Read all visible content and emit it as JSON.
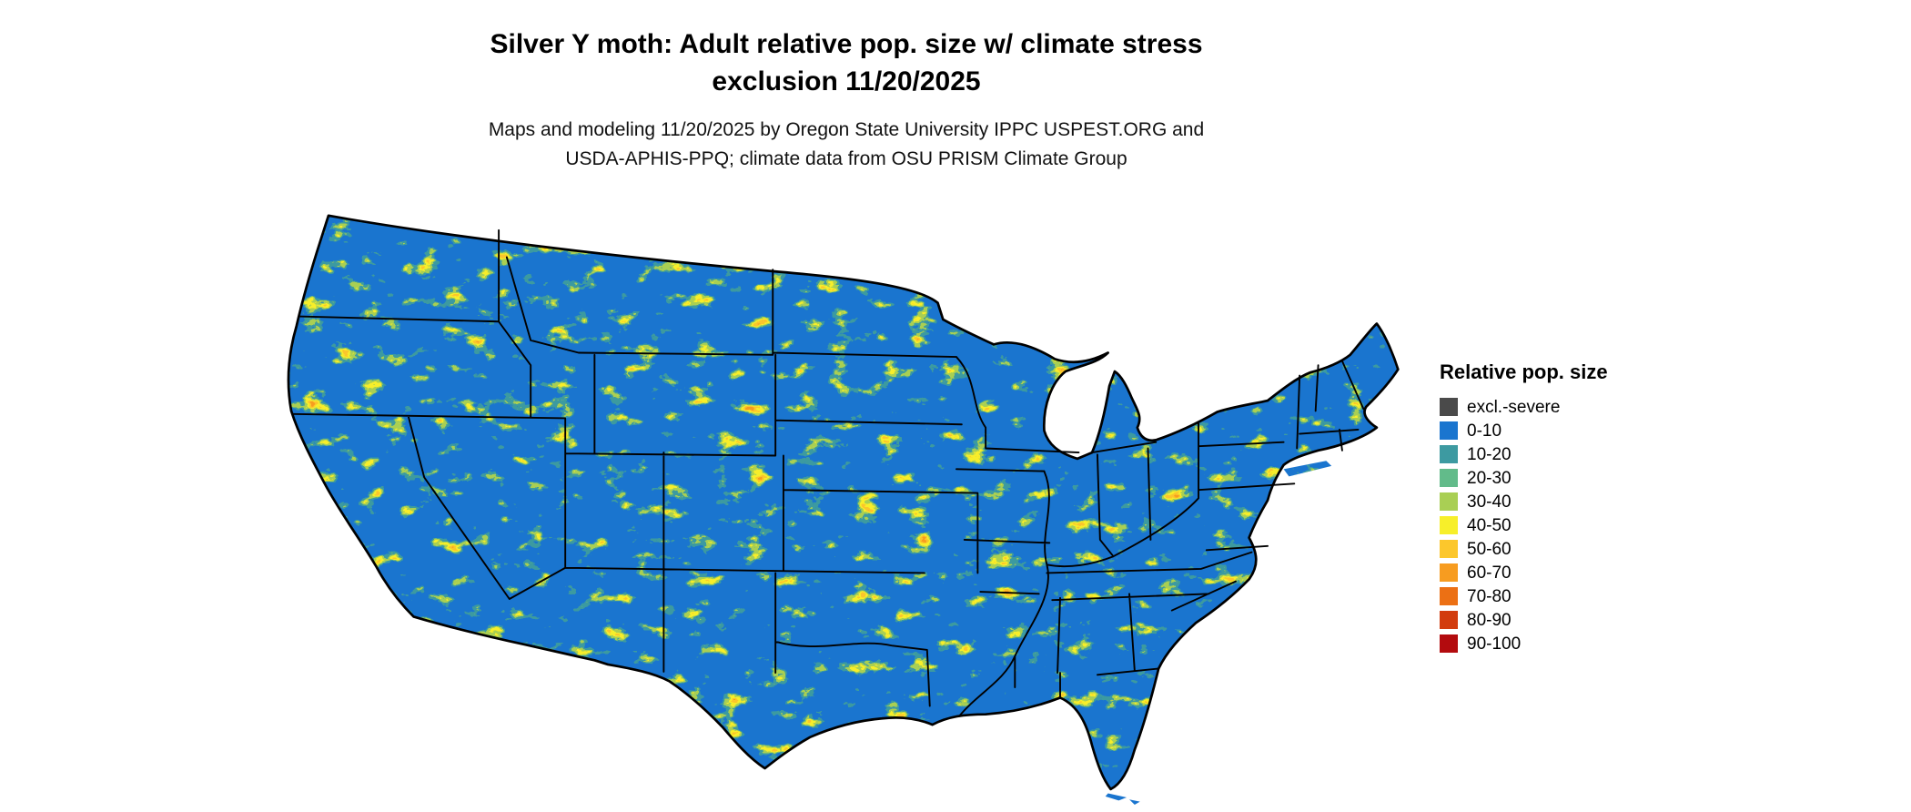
{
  "title": {
    "line1": "Silver Y moth: Adult relative pop. size w/ climate stress",
    "line2": "exclusion 11/20/2025"
  },
  "subtitle": {
    "line1": "Maps and modeling 11/20/2025 by Oregon State University IPPC USPEST.ORG and",
    "line2": "USDA-APHIS-PPQ; climate data from OSU PRISM Climate Group"
  },
  "map": {
    "region": "Conterminous United States",
    "base_color": "#1a75cf",
    "border_color": "#000000"
  },
  "legend": {
    "title": "Relative pop. size",
    "items": [
      {
        "label": "excl.-severe",
        "color": "#4a4a4a"
      },
      {
        "label": "0-10",
        "color": "#1a75cf"
      },
      {
        "label": "10-20",
        "color": "#3d9aa1"
      },
      {
        "label": "20-30",
        "color": "#62bb8a"
      },
      {
        "label": "30-40",
        "color": "#a9cf54"
      },
      {
        "label": "40-50",
        "color": "#f7ef2a"
      },
      {
        "label": "50-60",
        "color": "#fcc72c"
      },
      {
        "label": "60-70",
        "color": "#f79c20"
      },
      {
        "label": "70-80",
        "color": "#ec7014"
      },
      {
        "label": "80-90",
        "color": "#d23c0e"
      },
      {
        "label": "90-100",
        "color": "#b30b0e"
      }
    ]
  }
}
